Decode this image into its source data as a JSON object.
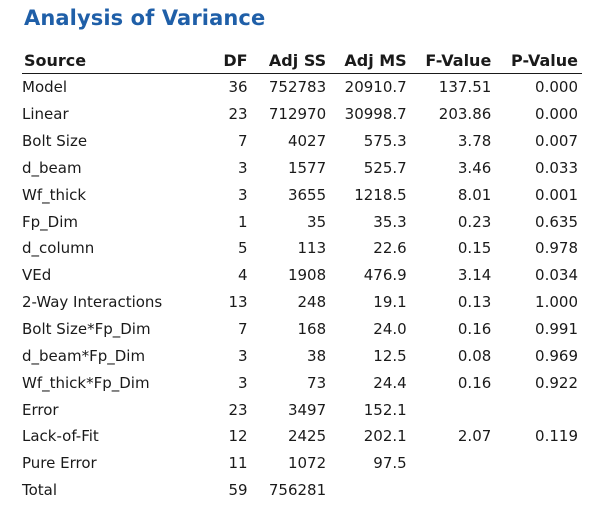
{
  "title": "Analysis of Variance",
  "columns": [
    "Source",
    "DF",
    "Adj SS",
    "Adj MS",
    "F-Value",
    "P-Value"
  ],
  "rows": [
    {
      "source": "Model",
      "indent": 0,
      "df": "36",
      "adj_ss": "752783",
      "adj_ms": "20910.7",
      "f_value": "137.51",
      "p_value": "0.000"
    },
    {
      "source": "Linear",
      "indent": 1,
      "df": "23",
      "adj_ss": "712970",
      "adj_ms": "30998.7",
      "f_value": "203.86",
      "p_value": "0.000"
    },
    {
      "source": "Bolt Size",
      "indent": 2,
      "df": "7",
      "adj_ss": "4027",
      "adj_ms": "575.3",
      "f_value": "3.78",
      "p_value": "0.007"
    },
    {
      "source": "d_beam",
      "indent": 2,
      "df": "3",
      "adj_ss": "1577",
      "adj_ms": "525.7",
      "f_value": "3.46",
      "p_value": "0.033"
    },
    {
      "source": "Wf_thick",
      "indent": 2,
      "df": "3",
      "adj_ss": "3655",
      "adj_ms": "1218.5",
      "f_value": "8.01",
      "p_value": "0.001"
    },
    {
      "source": "Fp_Dim",
      "indent": 2,
      "df": "1",
      "adj_ss": "35",
      "adj_ms": "35.3",
      "f_value": "0.23",
      "p_value": "0.635"
    },
    {
      "source": "d_column",
      "indent": 2,
      "df": "5",
      "adj_ss": "113",
      "adj_ms": "22.6",
      "f_value": "0.15",
      "p_value": "0.978"
    },
    {
      "source": "VEd",
      "indent": 2,
      "df": "4",
      "adj_ss": "1908",
      "adj_ms": "476.9",
      "f_value": "3.14",
      "p_value": "0.034"
    },
    {
      "source": "2-Way Interactions",
      "indent": 1,
      "df": "13",
      "adj_ss": "248",
      "adj_ms": "19.1",
      "f_value": "0.13",
      "p_value": "1.000"
    },
    {
      "source": "Bolt Size*Fp_Dim",
      "indent": 2,
      "df": "7",
      "adj_ss": "168",
      "adj_ms": "24.0",
      "f_value": "0.16",
      "p_value": "0.991"
    },
    {
      "source": "d_beam*Fp_Dim",
      "indent": 2,
      "df": "3",
      "adj_ss": "38",
      "adj_ms": "12.5",
      "f_value": "0.08",
      "p_value": "0.969"
    },
    {
      "source": "Wf_thick*Fp_Dim",
      "indent": 2,
      "df": "3",
      "adj_ss": "73",
      "adj_ms": "24.4",
      "f_value": "0.16",
      "p_value": "0.922"
    },
    {
      "source": "Error",
      "indent": 0,
      "df": "23",
      "adj_ss": "3497",
      "adj_ms": "152.1",
      "f_value": "",
      "p_value": ""
    },
    {
      "source": "Lack-of-Fit",
      "indent": 1,
      "df": "12",
      "adj_ss": "2425",
      "adj_ms": "202.1",
      "f_value": "2.07",
      "p_value": "0.119"
    },
    {
      "source": "Pure Error",
      "indent": 1,
      "df": "11",
      "adj_ss": "1072",
      "adj_ms": "97.5",
      "f_value": "",
      "p_value": ""
    },
    {
      "source": "Total",
      "indent": 0,
      "df": "59",
      "adj_ss": "756281",
      "adj_ms": "",
      "f_value": "",
      "p_value": ""
    }
  ]
}
